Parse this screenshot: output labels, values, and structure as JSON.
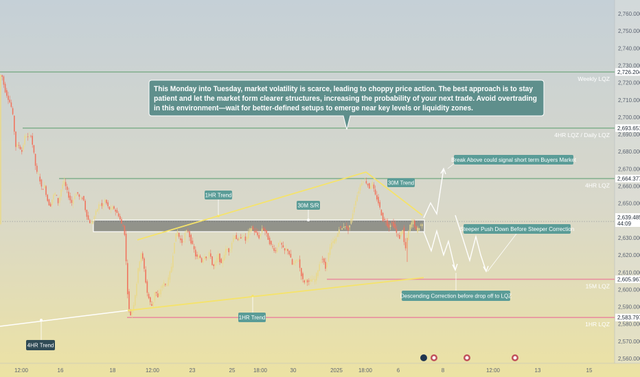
{
  "chart_data": {
    "type": "candlestick",
    "y_axis": {
      "side": "right",
      "range": [
        2555,
        2763
      ],
      "ticks": [
        "2,760.000",
        "2,750.000",
        "2,740.000",
        "2,730.000",
        "2,720.000",
        "2,710.000",
        "2,700.000",
        "2,690.000",
        "2,680.000",
        "2,670.000",
        "2,660.000",
        "2,650.000",
        "2,640.000",
        "2,630.000",
        "2,620.000",
        "2,610.000",
        "2,600.000",
        "2,590.000",
        "2,580.000",
        "2,570.000",
        "2,560.000"
      ]
    },
    "x_axis": {
      "ticks": [
        "12:00",
        "16",
        "18",
        "12:00",
        "23",
        "25",
        "18:00",
        "30",
        "2025",
        "18:00",
        "6",
        "8",
        "12:00",
        "13",
        "15"
      ]
    },
    "price_path": [
      [
        0,
        2725
      ],
      [
        4,
        2724
      ],
      [
        8,
        2716
      ],
      [
        12,
        2712
      ],
      [
        17,
        2707
      ],
      [
        20,
        2700
      ],
      [
        24,
        2683
      ],
      [
        28,
        2684
      ],
      [
        33,
        2680
      ],
      [
        38,
        2690
      ],
      [
        42,
        2688
      ],
      [
        46,
        2690
      ],
      [
        50,
        2680
      ],
      [
        54,
        2668
      ],
      [
        58,
        2666
      ],
      [
        62,
        2658
      ],
      [
        66,
        2660
      ],
      [
        70,
        2652
      ],
      [
        74,
        2648
      ],
      [
        78,
        2654
      ],
      [
        82,
        2656
      ],
      [
        86,
        2650
      ],
      [
        90,
        2658
      ],
      [
        94,
        2663
      ],
      [
        98,
        2658
      ],
      [
        102,
        2653
      ],
      [
        106,
        2650
      ],
      [
        110,
        2655
      ],
      [
        114,
        2656
      ],
      [
        118,
        2652
      ],
      [
        122,
        2654
      ],
      [
        126,
        2645
      ],
      [
        130,
        2640
      ],
      [
        134,
        2638
      ],
      [
        138,
        2642
      ],
      [
        142,
        2646
      ],
      [
        146,
        2650
      ],
      [
        150,
        2648
      ],
      [
        154,
        2652
      ],
      [
        158,
        2648
      ],
      [
        162,
        2646
      ],
      [
        166,
        2648
      ],
      [
        170,
        2645
      ],
      [
        174,
        2643
      ],
      [
        178,
        2638
      ],
      [
        182,
        2636
      ],
      [
        184,
        2622
      ],
      [
        186,
        2605
      ],
      [
        188,
        2590
      ],
      [
        191,
        2585
      ],
      [
        195,
        2590
      ],
      [
        199,
        2600
      ],
      [
        203,
        2614
      ],
      [
        207,
        2622
      ],
      [
        211,
        2612
      ],
      [
        215,
        2599
      ],
      [
        219,
        2593
      ],
      [
        223,
        2590
      ],
      [
        227,
        2600
      ],
      [
        231,
        2595
      ],
      [
        235,
        2600
      ],
      [
        239,
        2604
      ],
      [
        243,
        2602
      ],
      [
        247,
        2607
      ],
      [
        251,
        2614
      ],
      [
        255,
        2628
      ],
      [
        259,
        2634
      ],
      [
        263,
        2629
      ],
      [
        267,
        2627
      ],
      [
        271,
        2633
      ],
      [
        275,
        2634
      ],
      [
        279,
        2628
      ],
      [
        283,
        2624
      ],
      [
        287,
        2618
      ],
      [
        291,
        2620
      ],
      [
        295,
        2616
      ],
      [
        299,
        2620
      ],
      [
        303,
        2618
      ],
      [
        307,
        2622
      ],
      [
        311,
        2612
      ],
      [
        315,
        2616
      ],
      [
        319,
        2620
      ],
      [
        323,
        2614
      ],
      [
        327,
        2620
      ],
      [
        331,
        2624
      ],
      [
        335,
        2622
      ],
      [
        339,
        2628
      ],
      [
        343,
        2632
      ],
      [
        347,
        2628
      ],
      [
        351,
        2630
      ],
      [
        355,
        2632
      ],
      [
        359,
        2628
      ],
      [
        363,
        2633
      ],
      [
        367,
        2636
      ],
      [
        371,
        2634
      ],
      [
        375,
        2632
      ],
      [
        379,
        2630
      ],
      [
        383,
        2636
      ],
      [
        387,
        2634
      ],
      [
        391,
        2630
      ],
      [
        395,
        2626
      ],
      [
        399,
        2624
      ],
      [
        403,
        2622
      ],
      [
        407,
        2628
      ],
      [
        411,
        2626
      ],
      [
        415,
        2622
      ],
      [
        419,
        2624
      ],
      [
        423,
        2620
      ],
      [
        427,
        2614
      ],
      [
        431,
        2616
      ],
      [
        435,
        2618
      ],
      [
        439,
        2610
      ],
      [
        443,
        2604
      ],
      [
        447,
        2606
      ],
      [
        451,
        2604
      ],
      [
        455,
        2606
      ],
      [
        459,
        2605
      ],
      [
        463,
        2610
      ],
      [
        467,
        2616
      ],
      [
        471,
        2618
      ],
      [
        475,
        2612
      ],
      [
        479,
        2620
      ],
      [
        483,
        2626
      ],
      [
        487,
        2628
      ],
      [
        491,
        2630
      ],
      [
        495,
        2636
      ],
      [
        499,
        2635
      ],
      [
        503,
        2638
      ],
      [
        507,
        2634
      ],
      [
        511,
        2638
      ],
      [
        515,
        2645
      ],
      [
        519,
        2652
      ],
      [
        523,
        2657
      ],
      [
        527,
        2662
      ],
      [
        531,
        2664
      ],
      [
        535,
        2662
      ],
      [
        539,
        2659
      ],
      [
        543,
        2662
      ],
      [
        547,
        2655
      ],
      [
        551,
        2652
      ],
      [
        555,
        2646
      ],
      [
        559,
        2640
      ],
      [
        563,
        2640
      ],
      [
        567,
        2636
      ],
      [
        571,
        2639
      ],
      [
        575,
        2637
      ],
      [
        579,
        2632
      ],
      [
        583,
        2630
      ],
      [
        587,
        2636
      ],
      [
        591,
        2622
      ],
      [
        595,
        2632
      ],
      [
        599,
        2638
      ],
      [
        603,
        2640
      ],
      [
        607,
        2634
      ],
      [
        611,
        2636
      ],
      [
        615,
        2638
      ]
    ],
    "levels": [
      {
        "name": "Weekly LQZ",
        "price": 2726.204,
        "label": "2,726.204",
        "color": "#7fae8b"
      },
      {
        "name": "4HR LQZ / Daily LQZ",
        "price": 2693.651,
        "label": "2,693.651",
        "color": "#7fae8b"
      },
      {
        "name": "4HR LQZ",
        "price": 2664.377,
        "label": "2,664.377",
        "color": "#7fae8b"
      },
      {
        "name": "15M LQZ",
        "price": 2605.967,
        "label": "2,605.967",
        "color": "#e88fa0"
      },
      {
        "name": "1HR LQZ",
        "price": 2583.797,
        "label": "2,583.797",
        "color": "#e88fa0"
      }
    ],
    "current_price": {
      "value": 2639.485,
      "label": "2,639.485",
      "countdown": "44:09"
    },
    "annotations": {
      "trend_1hr_upper": "1HR Trend",
      "sr_30m": "30M S/R",
      "trend_30m": "30M Trend",
      "trend_1hr_lower": "1HR Trend",
      "trend_4hr": "4HR Trend",
      "break_above": "Break Above could signal short term Buyers Market",
      "steeper_push": "Steeper Push Down Before Steeper Correction",
      "descending_correction": "Descending Correction before drop off to LQZ"
    },
    "note": [
      "This Monday into Tuesday, market volatility is scarce, leading to choppy price action. The best approach is to stay",
      "patient and let the market form clearer structures, increasing the probability of your next trade. Avoid overtrading",
      "in this environment—wait for better-defined setups to emerge near key levels or liquidity zones."
    ]
  },
  "colors": {
    "bullish": "#e9d98c",
    "bearish": "#f0745e",
    "green_level": "#7fae8b",
    "pink_level": "#e88fa0",
    "trend_line": "#f5e36a"
  }
}
